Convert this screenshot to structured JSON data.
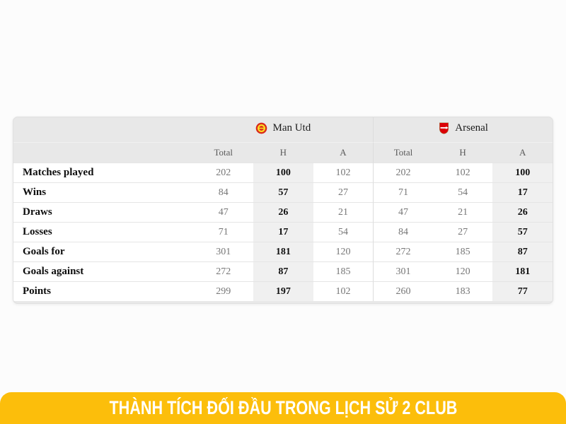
{
  "banner": {
    "text": "THÀNH TÍCH ĐỐI ĐẦU TRONG LỊCH SỬ 2 CLUB"
  },
  "chart_data": {
    "type": "table",
    "title": "THÀNH TÍCH ĐỐI ĐẦU TRONG LỊCH SỬ 2 CLUB",
    "teams": [
      {
        "name": "Man Utd",
        "logo": "man-utd-crest"
      },
      {
        "name": "Arsenal",
        "logo": "arsenal-crest"
      }
    ],
    "sub_headers": [
      "Total",
      "H",
      "A",
      "Total",
      "H",
      "A"
    ],
    "highlight_columns": [
      1,
      5
    ],
    "rows": [
      {
        "label": "Matches played",
        "values": [
          202,
          100,
          102,
          202,
          102,
          100
        ]
      },
      {
        "label": "Wins",
        "values": [
          84,
          57,
          27,
          71,
          54,
          17
        ]
      },
      {
        "label": "Draws",
        "values": [
          47,
          26,
          21,
          47,
          21,
          26
        ]
      },
      {
        "label": "Losses",
        "values": [
          71,
          17,
          54,
          84,
          27,
          57
        ]
      },
      {
        "label": "Goals for",
        "values": [
          301,
          181,
          120,
          272,
          185,
          87
        ]
      },
      {
        "label": "Goals against",
        "values": [
          272,
          87,
          185,
          301,
          120,
          181
        ]
      },
      {
        "label": "Points",
        "values": [
          299,
          197,
          102,
          260,
          183,
          77
        ]
      }
    ]
  },
  "colors": {
    "banner_bg": "#FCBE0B",
    "banner_text": "#FFFFFF",
    "header_bg": "#E8E8E8",
    "highlight_bg": "#F0F0F0",
    "value_text": "#767676",
    "label_text": "#0D0D0D",
    "man_utd_red": "#DA291C",
    "man_utd_gold": "#FBE122",
    "arsenal_red": "#DB0007"
  }
}
